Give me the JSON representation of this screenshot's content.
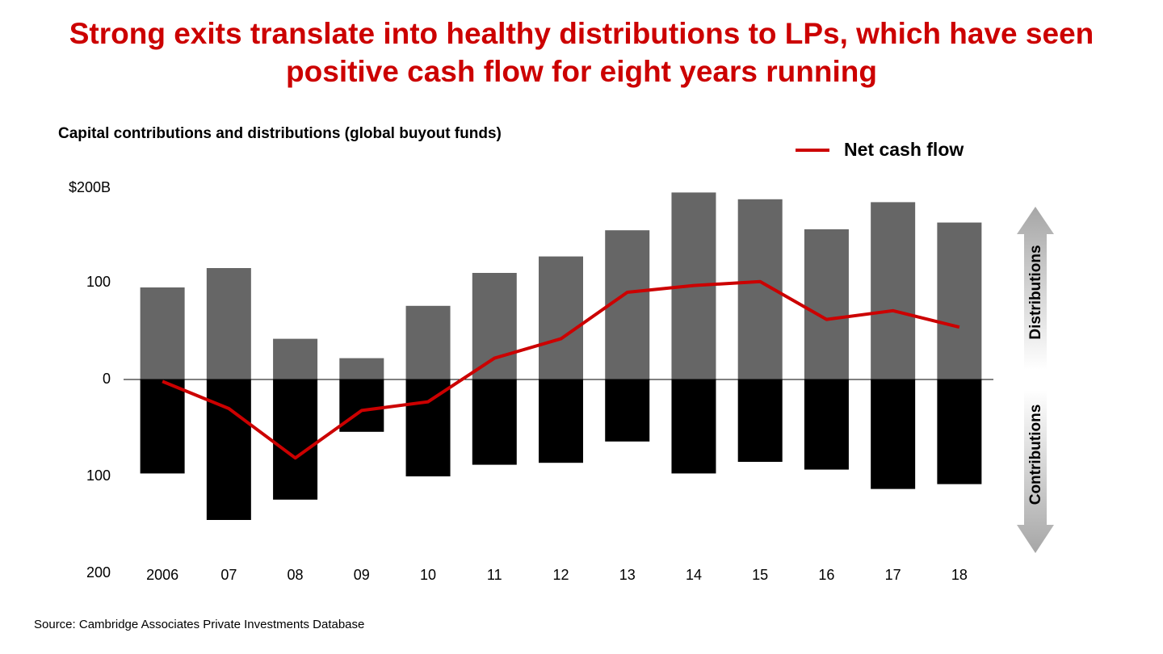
{
  "chart_data": {
    "type": "bar",
    "title": "Strong exits translate into healthy distributions to LPs, which have seen positive cash flow for eight years running",
    "subtitle": "Capital contributions and distributions (global buyout funds)",
    "source": "Source: Cambridge Associates Private Investments Database",
    "categories": [
      "2006",
      "07",
      "08",
      "09",
      "10",
      "11",
      "12",
      "13",
      "14",
      "15",
      "16",
      "17",
      "18"
    ],
    "series": [
      {
        "name": "Distributions",
        "type": "bar",
        "color": "#666666",
        "values": [
          95,
          115,
          42,
          22,
          76,
          110,
          127,
          154,
          193,
          186,
          155,
          183,
          162
        ]
      },
      {
        "name": "Contributions",
        "type": "bar",
        "color": "#000000",
        "values": [
          -97,
          -145,
          -124,
          -54,
          -100,
          -88,
          -86,
          -64,
          -97,
          -85,
          -93,
          -113,
          -108
        ]
      },
      {
        "name": "Net cash flow",
        "type": "line",
        "color": "#cc0000",
        "values": [
          -2,
          -30,
          -81,
          -32,
          -23,
          22,
          42,
          90,
          97,
          101,
          62,
          71,
          54
        ]
      }
    ],
    "ylim": [
      -200,
      200
    ],
    "yticks": [
      {
        "value": 200,
        "label": "$200B"
      },
      100,
      0,
      {
        "value": -100,
        "label": "100"
      },
      {
        "value": -200,
        "label": "200"
      }
    ]
  }
}
